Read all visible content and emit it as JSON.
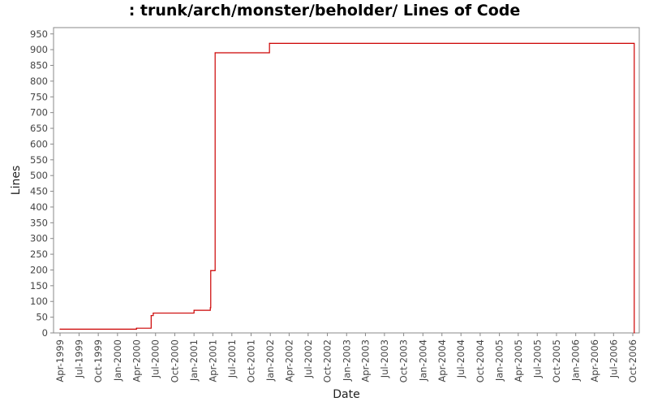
{
  "chart_data": {
    "type": "line",
    "title": ": trunk/arch/monster/beholder/ Lines of Code",
    "xlabel": "Date",
    "ylabel": "Lines",
    "ylim": [
      0,
      970
    ],
    "xlim": [
      "1999-03-01",
      "2006-11-01"
    ],
    "y_ticks": [
      0,
      50,
      100,
      150,
      200,
      250,
      300,
      350,
      400,
      450,
      500,
      550,
      600,
      650,
      700,
      750,
      800,
      850,
      900,
      950
    ],
    "x_ticks": [
      {
        "date": "1999-04-01",
        "label": "Apr-1999"
      },
      {
        "date": "1999-07-01",
        "label": "Jul-1999"
      },
      {
        "date": "1999-10-01",
        "label": "Oct-1999"
      },
      {
        "date": "2000-01-01",
        "label": "Jan-2000"
      },
      {
        "date": "2000-04-01",
        "label": "Apr-2000"
      },
      {
        "date": "2000-07-01",
        "label": "Jul-2000"
      },
      {
        "date": "2000-10-01",
        "label": "Oct-2000"
      },
      {
        "date": "2001-01-01",
        "label": "Jan-2001"
      },
      {
        "date": "2001-04-01",
        "label": "Apr-2001"
      },
      {
        "date": "2001-07-01",
        "label": "Jul-2001"
      },
      {
        "date": "2001-10-01",
        "label": "Oct-2001"
      },
      {
        "date": "2002-01-01",
        "label": "Jan-2002"
      },
      {
        "date": "2002-04-01",
        "label": "Apr-2002"
      },
      {
        "date": "2002-07-01",
        "label": "Jul-2002"
      },
      {
        "date": "2002-10-01",
        "label": "Oct-2002"
      },
      {
        "date": "2003-01-01",
        "label": "Jan-2003"
      },
      {
        "date": "2003-04-01",
        "label": "Apr-2003"
      },
      {
        "date": "2003-07-01",
        "label": "Jul-2003"
      },
      {
        "date": "2003-10-01",
        "label": "Oct-2003"
      },
      {
        "date": "2004-01-01",
        "label": "Jan-2004"
      },
      {
        "date": "2004-04-01",
        "label": "Apr-2004"
      },
      {
        "date": "2004-07-01",
        "label": "Jul-2004"
      },
      {
        "date": "2004-10-01",
        "label": "Oct-2004"
      },
      {
        "date": "2005-01-01",
        "label": "Jan-2005"
      },
      {
        "date": "2005-04-01",
        "label": "Apr-2005"
      },
      {
        "date": "2005-07-01",
        "label": "Jul-2005"
      },
      {
        "date": "2005-10-01",
        "label": "Oct-2005"
      },
      {
        "date": "2006-01-01",
        "label": "Jan-2006"
      },
      {
        "date": "2006-04-01",
        "label": "Apr-2006"
      },
      {
        "date": "2006-07-01",
        "label": "Jul-2006"
      },
      {
        "date": "2006-10-01",
        "label": "Oct-2006"
      }
    ],
    "step": true,
    "grid": false,
    "series": [
      {
        "color": "#cc0000",
        "points": [
          {
            "x": "1999-04-01",
            "y": 12
          },
          {
            "x": "2000-04-01",
            "y": 15
          },
          {
            "x": "2000-06-10",
            "y": 55
          },
          {
            "x": "2000-06-20",
            "y": 63
          },
          {
            "x": "2001-01-01",
            "y": 72
          },
          {
            "x": "2001-03-20",
            "y": 80
          },
          {
            "x": "2001-03-22",
            "y": 198
          },
          {
            "x": "2001-04-12",
            "y": 890
          },
          {
            "x": "2001-12-28",
            "y": 920
          },
          {
            "x": "2006-10-08",
            "y": 0
          }
        ]
      }
    ]
  }
}
